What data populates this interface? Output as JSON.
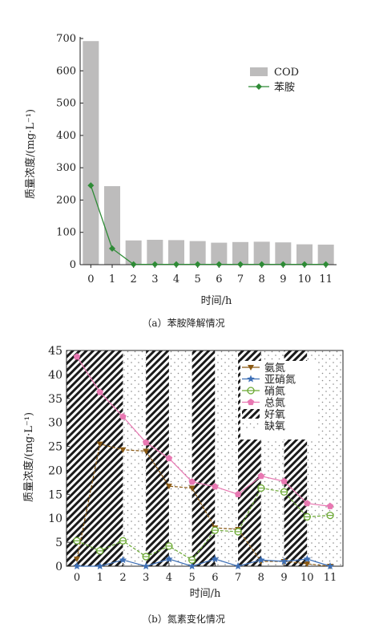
{
  "chart_data": [
    {
      "type": "bar",
      "caption": "（a）苯胺降解情况",
      "xlabel": "时间/h",
      "ylabel": "质量浓度/(mg·L⁻¹)",
      "categories": [
        "0",
        "1",
        "2",
        "3",
        "4",
        "5",
        "6",
        "7",
        "8",
        "9",
        "10",
        "11"
      ],
      "ylim": [
        0,
        700
      ],
      "yticks": [
        "0",
        "100",
        "200",
        "300",
        "400",
        "500",
        "600",
        "700"
      ],
      "legend_position": "top-right",
      "series": [
        {
          "name": "COD",
          "kind": "bar",
          "color": "#bdbcbc",
          "values": [
            692,
            243,
            75,
            77,
            76,
            73,
            68,
            70,
            71,
            69,
            63,
            62
          ]
        },
        {
          "name": "苯胺",
          "kind": "line",
          "color": "#2e8b36",
          "values": [
            245,
            50,
            1,
            1,
            1,
            1,
            1,
            1,
            1,
            1,
            1,
            1
          ]
        }
      ]
    },
    {
      "type": "line",
      "caption": "（b）氮素变化情况",
      "xlabel": "时间/h",
      "ylabel": "质量浓度/(mg·L⁻¹)",
      "categories": [
        "0",
        "1",
        "2",
        "3",
        "4",
        "5",
        "6",
        "7",
        "8",
        "9",
        "10",
        "11"
      ],
      "ylim": [
        0,
        45
      ],
      "yticks": [
        "0",
        "5",
        "10",
        "15",
        "20",
        "25",
        "30",
        "35",
        "40",
        "45"
      ],
      "legend_position": "top-right",
      "phases": [
        {
          "label": "好氧",
          "from": 0,
          "to": 2
        },
        {
          "label": "缺氧",
          "from": 2,
          "to": 3
        },
        {
          "label": "好氧",
          "from": 3,
          "to": 4
        },
        {
          "label": "缺氧",
          "from": 4,
          "to": 5
        },
        {
          "label": "好氧",
          "from": 5,
          "to": 6
        },
        {
          "label": "缺氧",
          "from": 6,
          "to": 7
        },
        {
          "label": "好氧",
          "from": 7,
          "to": 8
        },
        {
          "label": "缺氧",
          "from": 8,
          "to": 9
        },
        {
          "label": "好氧",
          "from": 9,
          "to": 10
        },
        {
          "label": "缺氧",
          "from": 10,
          "to": 11
        }
      ],
      "series": [
        {
          "name": "氨氮",
          "color": "#8b5a14",
          "marker": "triangle-down",
          "values": [
            1.5,
            25.5,
            24.3,
            24,
            16.7,
            16.3,
            8,
            7.7,
            1,
            1,
            0.5,
            0
          ]
        },
        {
          "name": "亚硝氮",
          "color": "#3d6fb6",
          "marker": "star",
          "values": [
            0,
            0,
            1.3,
            0,
            1.5,
            0,
            1.5,
            0,
            1.3,
            1,
            1.5,
            0
          ]
        },
        {
          "name": "硝氮",
          "color": "#6aa832",
          "marker": "circle-half",
          "values": [
            5.3,
            3.2,
            5.3,
            2,
            4.2,
            1.3,
            7.5,
            7.2,
            16.3,
            15.5,
            10.3,
            10.6
          ]
        },
        {
          "name": "总氮",
          "color": "#e878b2",
          "marker": "pentagon",
          "values": [
            43.7,
            36.3,
            31.2,
            25.8,
            22.5,
            17.6,
            16.6,
            15,
            18.8,
            17.7,
            13.1,
            12.5
          ]
        }
      ],
      "phase_legend": [
        {
          "name": "好氧",
          "fill": "hatch"
        },
        {
          "name": "缺氧",
          "fill": "dots"
        }
      ]
    }
  ]
}
